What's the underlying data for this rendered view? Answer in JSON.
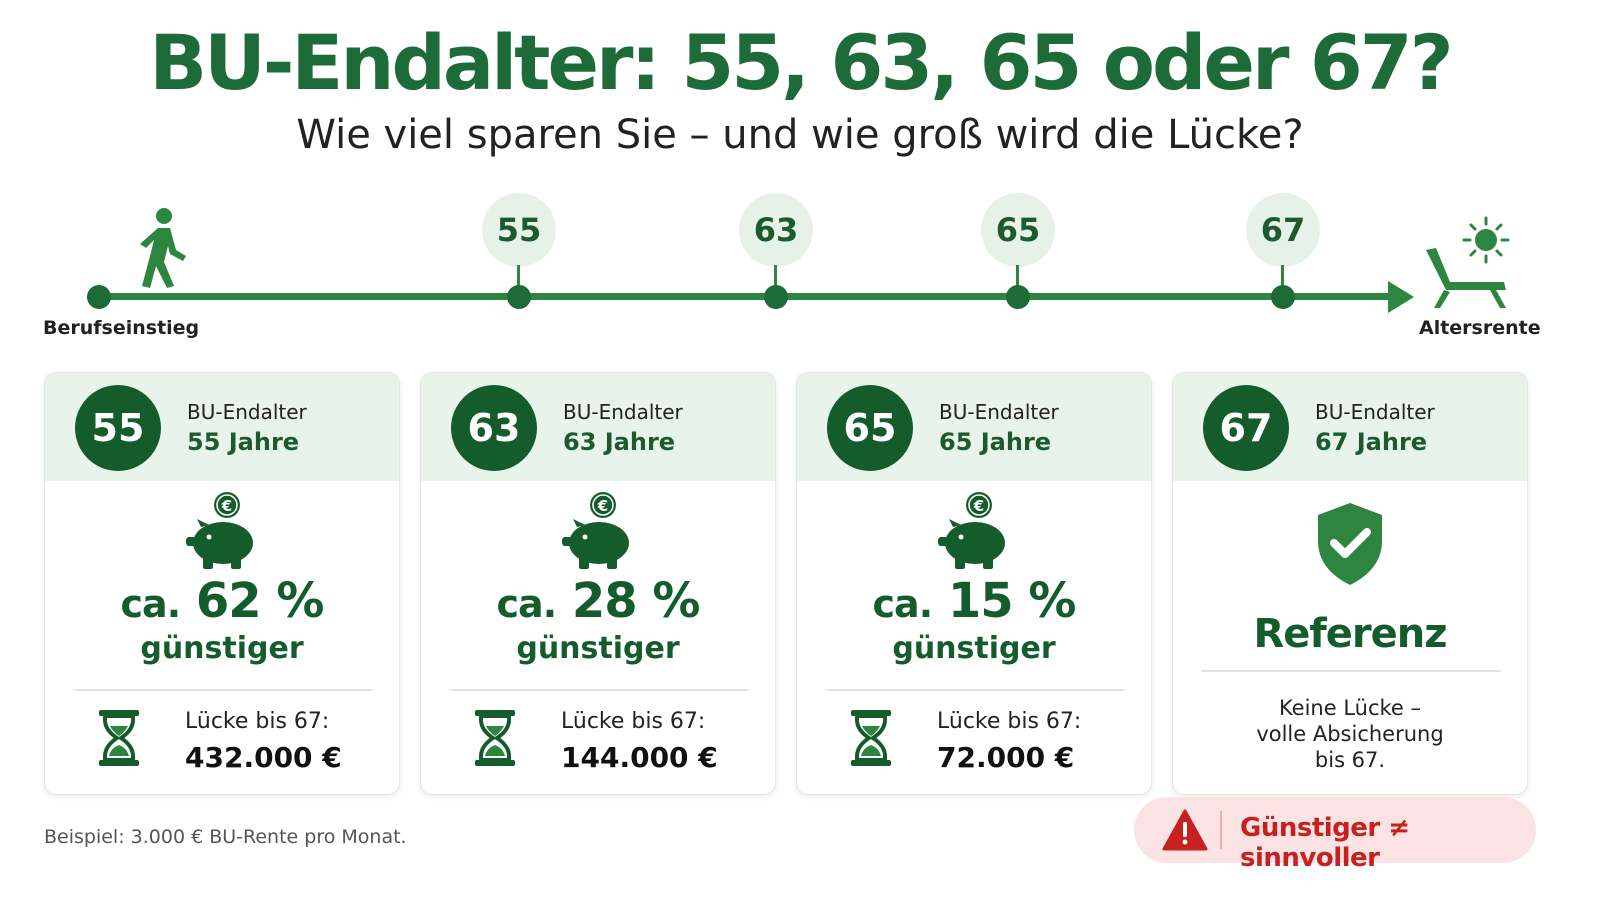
{
  "header": {
    "title": "BU-Endalter: 55, 63, 65 oder 67?",
    "subtitle": "Wie viel sparen Sie – und wie groß wird die Lücke?"
  },
  "timeline": {
    "start_label": "Berufseinstieg",
    "end_label": "Altersrente",
    "start_icon": "walking-person-icon",
    "end_icon": "sun-lounger-icon",
    "milestones": [
      "55",
      "63",
      "65",
      "67"
    ]
  },
  "cards": [
    {
      "badge": "55",
      "label": "BU-Endalter",
      "years": "55 Jahre",
      "icon": "piggy-bank-euro-icon",
      "ca": "ca.",
      "pct": "62 %",
      "cheaper": "günstiger",
      "gap_label": "Lücke bis 67:",
      "gap_value": "432.000 €"
    },
    {
      "badge": "63",
      "label": "BU-Endalter",
      "years": "63 Jahre",
      "icon": "piggy-bank-euro-icon",
      "ca": "ca.",
      "pct": "28 %",
      "cheaper": "günstiger",
      "gap_label": "Lücke bis 67:",
      "gap_value": "144.000 €"
    },
    {
      "badge": "65",
      "label": "BU-Endalter",
      "years": "65 Jahre",
      "icon": "piggy-bank-euro-icon",
      "ca": "ca.",
      "pct": "15 %",
      "cheaper": "günstiger",
      "gap_label": "Lücke bis 67:",
      "gap_value": "72.000 €"
    },
    {
      "badge": "67",
      "label": "BU-Endalter",
      "years": "67 Jahre",
      "icon": "shield-check-icon",
      "reference": "Referenz",
      "no_gap_l1": "Keine Lücke –",
      "no_gap_l2": "volle Absicherung",
      "no_gap_l3": "bis 67."
    }
  ],
  "footnote": "Beispiel: 3.000 € BU-Rente pro Monat.",
  "warning": {
    "icon": "warning-triangle-icon",
    "text": "Günstiger ≠ sinnvoller"
  },
  "colors": {
    "primary": "#1d6b38",
    "dark": "#155c2d",
    "light": "#e8f3ea",
    "warning": "#c62020",
    "warning_bg": "#fbe3e3"
  }
}
